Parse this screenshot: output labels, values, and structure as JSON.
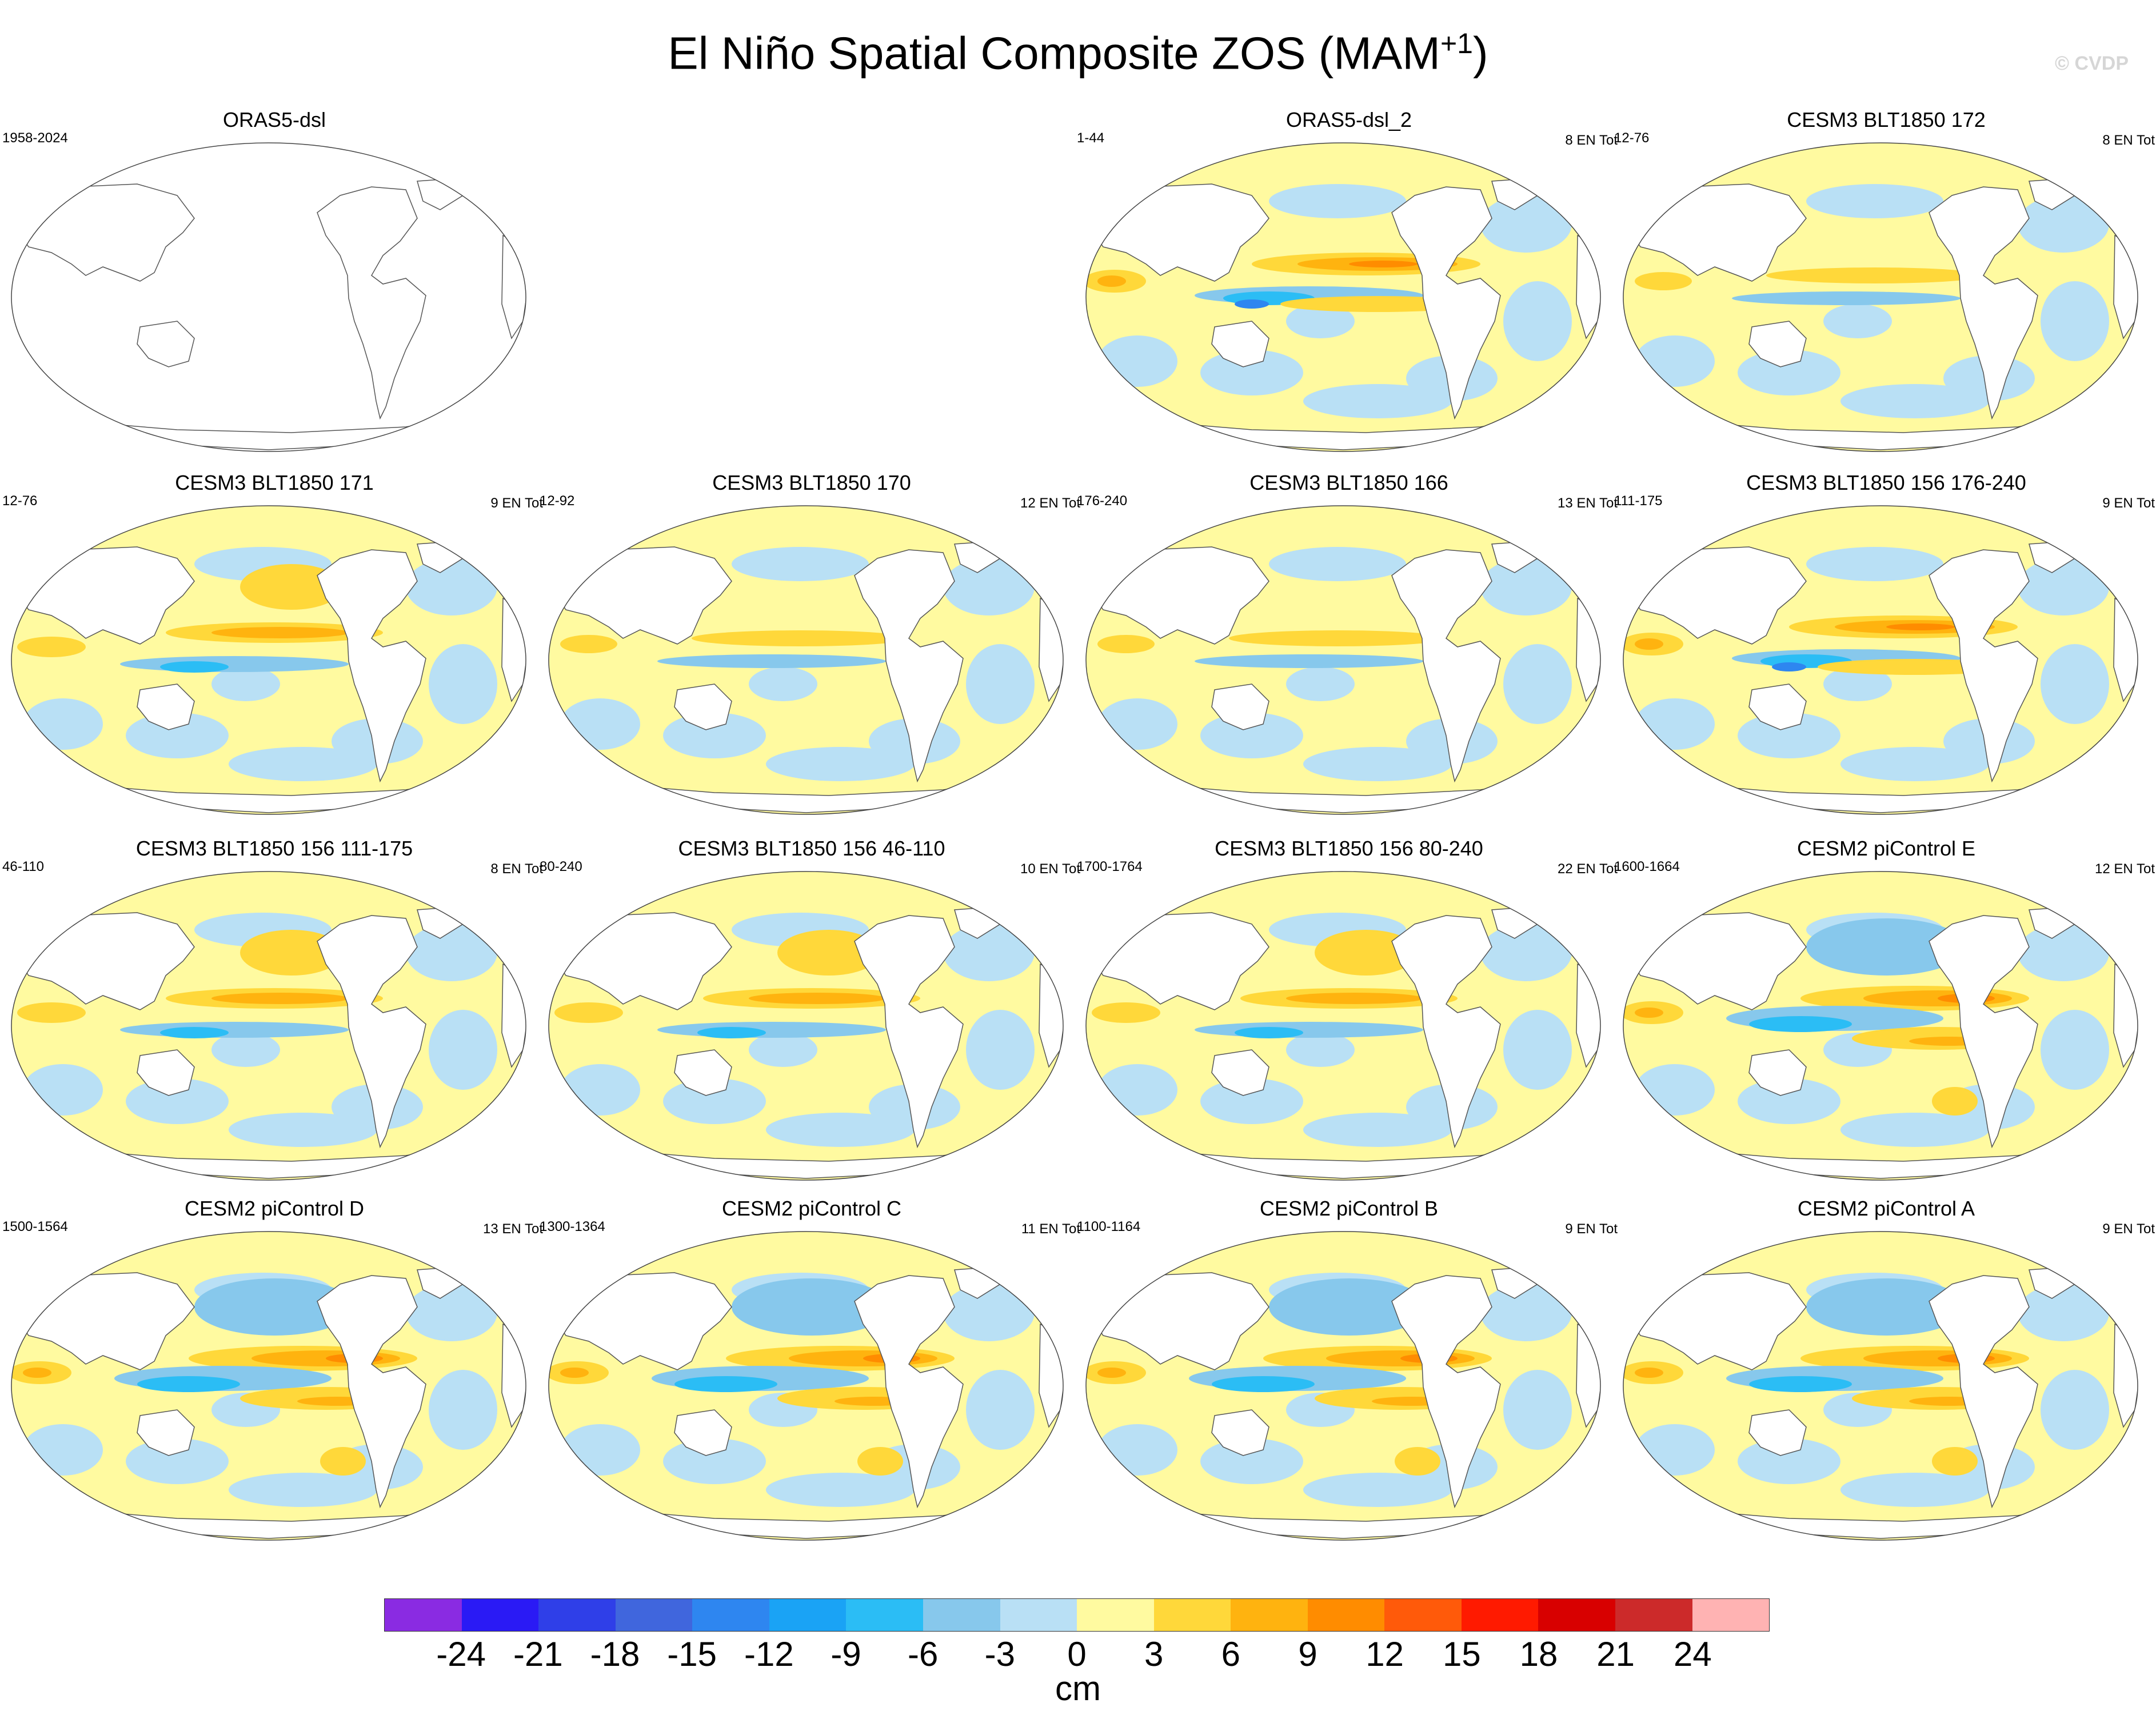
{
  "title": {
    "main": "El Niño Spatial Composite ZOS (MAM",
    "sup": "+1",
    "end": ")"
  },
  "watermark": "© CVDP",
  "panels": [
    {
      "name": "ORAS5-dsl",
      "years": "1958-2024",
      "count": "",
      "style": "blank"
    },
    {
      "name": "ORAS5-dsl_2",
      "years": "1-44",
      "count": "8 EN Tot",
      "style": "obs"
    },
    {
      "name": "CESM3 BLT1850 172",
      "years": "12-76",
      "count": "8 EN Tot",
      "style": "weak"
    },
    {
      "name": "CESM3 BLT1850 171",
      "years": "12-76",
      "count": "9 EN Tot",
      "style": "model"
    },
    {
      "name": "CESM3 BLT1850 170",
      "years": "12-92",
      "count": "12 EN Tot",
      "style": "weak"
    },
    {
      "name": "CESM3 BLT1850 166",
      "years": "176-240",
      "count": "13 EN Tot",
      "style": "weak"
    },
    {
      "name": "CESM3 BLT1850 156 176-240",
      "years": "111-175",
      "count": "9 EN Tot",
      "style": "strong"
    },
    {
      "name": "CESM3 BLT1850 156 111-175",
      "years": "46-110",
      "count": "8 EN Tot",
      "style": "model"
    },
    {
      "name": "CESM3 BLT1850 156 46-110",
      "years": "80-240",
      "count": "10 EN Tot",
      "style": "model"
    },
    {
      "name": "CESM3 BLT1850 156 80-240",
      "years": "1700-1764",
      "count": "22 EN Tot",
      "style": "model"
    },
    {
      "name": "CESM2 piControl E",
      "years": "1600-1664",
      "count": "12 EN Tot",
      "style": "cesm2"
    },
    {
      "name": "CESM2 piControl D",
      "years": "1500-1564",
      "count": "13 EN Tot",
      "style": "cesm2"
    },
    {
      "name": "CESM2 piControl C",
      "years": "1300-1364",
      "count": "11 EN Tot",
      "style": "cesm2"
    },
    {
      "name": "CESM2 piControl B",
      "years": "1100-1164",
      "count": "9 EN Tot",
      "style": "cesm2"
    },
    {
      "name": "CESM2 piControl A",
      "years": "",
      "count": "9 EN Tot",
      "style": "cesm2"
    }
  ],
  "colorbar": {
    "colors": [
      "#8a2be2",
      "#2a1af5",
      "#2f3fe8",
      "#4066dd",
      "#2e86f0",
      "#1aa3f5",
      "#2bbdf5",
      "#87c8ec",
      "#b9e0f5",
      "#fffaa0",
      "#ffd83a",
      "#ffb30f",
      "#ff8c00",
      "#ff5a0a",
      "#ff1a00",
      "#d80000",
      "#cc2a2a",
      "#ffb3b3"
    ],
    "labels": [
      "-24",
      "-21",
      "-18",
      "-15",
      "-12",
      "-9",
      "-6",
      "-3",
      "0",
      "3",
      "6",
      "9",
      "12",
      "15",
      "18",
      "21",
      "24"
    ],
    "units": "cm"
  },
  "colors": {
    "pos1": "#fffaa0",
    "pos2": "#ffd83a",
    "pos3": "#ffb30f",
    "pos4": "#ff8c00",
    "neg1": "#b9e0f5",
    "neg2": "#87c8ec",
    "neg3": "#2bbdf5",
    "neg4": "#2e86f0",
    "land": "#ffffff",
    "coast": "#555555"
  }
}
